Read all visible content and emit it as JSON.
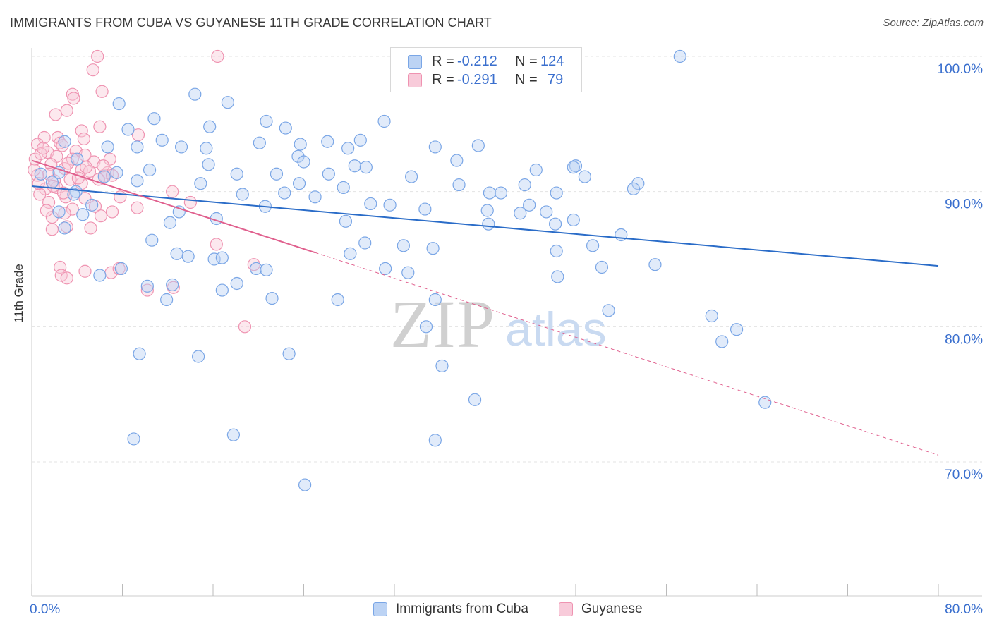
{
  "header": {
    "title": "IMMIGRANTS FROM CUBA VS GUYANESE 11TH GRADE CORRELATION CHART",
    "source": "Source: ZipAtlas.com"
  },
  "watermark": {
    "zip": "ZIP",
    "atlas": "atlas"
  },
  "colors": {
    "blue": "#7aa6e6",
    "blue_fill": "#bcd3f4",
    "blue_line": "#2a6cc8",
    "pink": "#ef93b1",
    "pink_fill": "#f8cbda",
    "pink_line": "#e0608e",
    "tick_label": "#3a6fce"
  },
  "legend_stats": [
    {
      "r_label": "R =",
      "r_value": "-0.212",
      "n_label": "N =",
      "n_value": "124"
    },
    {
      "r_label": "R =",
      "r_value": "-0.291",
      "n_label": "N =",
      "n_value": "79"
    }
  ],
  "chart_data": {
    "type": "scatter",
    "title": "IMMIGRANTS FROM CUBA VS GUYANESE 11TH GRADE CORRELATION CHART",
    "xlabel": "",
    "ylabel": "11th Grade",
    "xlim": [
      0,
      80
    ],
    "ylim": [
      60,
      102
    ],
    "x_tick_labels": [
      "0.0%",
      "80.0%"
    ],
    "y_ticks": [
      70,
      80,
      90,
      100
    ],
    "y_tick_labels": [
      "70.0%",
      "80.0%",
      "90.0%",
      "100.0%"
    ],
    "grid": true,
    "legend_position": "bottom",
    "series": [
      {
        "name": "Immigrants from Cuba",
        "color": "blue",
        "trend": {
          "x": [
            0,
            80
          ],
          "y": [
            90.4,
            84.5
          ],
          "style": "solid"
        },
        "points": [
          [
            57.2,
            100
          ],
          [
            14.4,
            97.2
          ],
          [
            7.7,
            96.5
          ],
          [
            17.3,
            96.6
          ],
          [
            10.8,
            95.4
          ],
          [
            20.7,
            95.2
          ],
          [
            31.1,
            95.2
          ],
          [
            15.7,
            94.8
          ],
          [
            22.4,
            94.7
          ],
          [
            8.5,
            94.6
          ],
          [
            11.5,
            93.8
          ],
          [
            20.1,
            93.6
          ],
          [
            23.7,
            93.5
          ],
          [
            26.1,
            93.7
          ],
          [
            2.9,
            93.7
          ],
          [
            13.2,
            93.3
          ],
          [
            15.4,
            93.2
          ],
          [
            9.3,
            93.3
          ],
          [
            6.7,
            93.3
          ],
          [
            29.0,
            93.8
          ],
          [
            27.9,
            93.2
          ],
          [
            35.6,
            93.3
          ],
          [
            39.4,
            93.4
          ],
          [
            37.5,
            92.3
          ],
          [
            23.5,
            92.6
          ],
          [
            24.0,
            92.2
          ],
          [
            4.0,
            92.4
          ],
          [
            15.6,
            92.0
          ],
          [
            48.0,
            91.9
          ],
          [
            47.8,
            91.8
          ],
          [
            28.5,
            91.9
          ],
          [
            29.5,
            91.8
          ],
          [
            44.5,
            91.6
          ],
          [
            10.4,
            91.6
          ],
          [
            2.4,
            91.4
          ],
          [
            0.8,
            91.3
          ],
          [
            7.5,
            91.4
          ],
          [
            18.1,
            91.3
          ],
          [
            26.2,
            91.3
          ],
          [
            21.6,
            91.3
          ],
          [
            6.4,
            91.1
          ],
          [
            9.3,
            90.8
          ],
          [
            33.5,
            91.1
          ],
          [
            14.9,
            90.6
          ],
          [
            48.8,
            91.1
          ],
          [
            53.5,
            90.6
          ],
          [
            37.7,
            90.5
          ],
          [
            23.6,
            90.6
          ],
          [
            27.5,
            90.3
          ],
          [
            43.5,
            90.5
          ],
          [
            40.4,
            89.9
          ],
          [
            46.3,
            89.9
          ],
          [
            41.4,
            89.9
          ],
          [
            18.6,
            89.8
          ],
          [
            22.3,
            89.9
          ],
          [
            25.0,
            89.6
          ],
          [
            1.8,
            90.7
          ],
          [
            3.9,
            90.0
          ],
          [
            3.7,
            89.8
          ],
          [
            5.3,
            89.0
          ],
          [
            20.6,
            88.9
          ],
          [
            29.9,
            89.1
          ],
          [
            40.2,
            88.6
          ],
          [
            43.9,
            89.0
          ],
          [
            45.4,
            88.5
          ],
          [
            34.7,
            88.7
          ],
          [
            31.6,
            89.0
          ],
          [
            13.0,
            88.5
          ],
          [
            43.1,
            88.4
          ],
          [
            16.3,
            88.0
          ],
          [
            27.7,
            87.8
          ],
          [
            12.2,
            87.7
          ],
          [
            2.4,
            88.5
          ],
          [
            4.5,
            88.3
          ],
          [
            2.9,
            87.3
          ],
          [
            46.2,
            87.6
          ],
          [
            40.3,
            87.6
          ],
          [
            10.6,
            86.4
          ],
          [
            29.4,
            86.2
          ],
          [
            32.8,
            86.0
          ],
          [
            28.1,
            85.4
          ],
          [
            12.8,
            85.4
          ],
          [
            13.8,
            85.2
          ],
          [
            16.1,
            85.0
          ],
          [
            16.8,
            85.1
          ],
          [
            35.4,
            85.8
          ],
          [
            33.2,
            84.0
          ],
          [
            46.3,
            85.6
          ],
          [
            19.8,
            84.3
          ],
          [
            20.7,
            84.2
          ],
          [
            18.1,
            83.2
          ],
          [
            31.2,
            84.3
          ],
          [
            10.2,
            83.0
          ],
          [
            12.4,
            83.1
          ],
          [
            16.8,
            82.7
          ],
          [
            11.9,
            82.0
          ],
          [
            21.2,
            82.1
          ],
          [
            27.0,
            82.0
          ],
          [
            35.6,
            82.0
          ],
          [
            6.0,
            83.8
          ],
          [
            7.9,
            84.3
          ],
          [
            60.0,
            80.8
          ],
          [
            62.2,
            79.8
          ],
          [
            34.8,
            80.0
          ],
          [
            36.2,
            77.1
          ],
          [
            60.9,
            78.9
          ],
          [
            64.7,
            74.4
          ],
          [
            9.5,
            78.0
          ],
          [
            14.7,
            77.8
          ],
          [
            22.7,
            78.0
          ],
          [
            39.1,
            74.6
          ],
          [
            9.0,
            71.7
          ],
          [
            17.8,
            72.0
          ],
          [
            35.6,
            71.6
          ],
          [
            24.1,
            68.3
          ],
          [
            53.1,
            90.2
          ],
          [
            47.8,
            87.9
          ],
          [
            52.0,
            86.8
          ],
          [
            49.5,
            86.0
          ],
          [
            55.0,
            84.6
          ],
          [
            50.3,
            84.4
          ],
          [
            46.4,
            83.7
          ],
          [
            50.9,
            81.2
          ]
        ]
      },
      {
        "name": "Guyanese",
        "color": "pink",
        "trend": {
          "x": [
            0,
            80
          ],
          "y": [
            92.3,
            70.5
          ],
          "style": "solid-then-dashed",
          "solid_until_x": 25
        },
        "points": [
          [
            5.8,
            100
          ],
          [
            16.4,
            100
          ],
          [
            5.4,
            99.0
          ],
          [
            6.2,
            97.4
          ],
          [
            3.6,
            97.2
          ],
          [
            3.7,
            96.9
          ],
          [
            3.1,
            96.0
          ],
          [
            2.1,
            95.7
          ],
          [
            4.4,
            94.5
          ],
          [
            6.0,
            94.8
          ],
          [
            2.3,
            94.0
          ],
          [
            1.1,
            94.0
          ],
          [
            2.5,
            93.6
          ],
          [
            4.6,
            93.9
          ],
          [
            9.4,
            94.2
          ],
          [
            0.5,
            93.5
          ],
          [
            3.9,
            93.0
          ],
          [
            1.4,
            92.9
          ],
          [
            2.2,
            92.6
          ],
          [
            4.7,
            92.7
          ],
          [
            5.5,
            92.2
          ],
          [
            6.9,
            92.4
          ],
          [
            0.3,
            92.4
          ],
          [
            1.7,
            92.0
          ],
          [
            2.9,
            91.7
          ],
          [
            4.4,
            91.6
          ],
          [
            5.1,
            91.5
          ],
          [
            6.4,
            91.2
          ],
          [
            6.7,
            91.4
          ],
          [
            1.5,
            91.3
          ],
          [
            0.5,
            91.2
          ],
          [
            3.4,
            90.9
          ],
          [
            2.0,
            90.8
          ],
          [
            4.4,
            90.6
          ],
          [
            2.2,
            90.3
          ],
          [
            1.2,
            90.2
          ],
          [
            0.7,
            89.8
          ],
          [
            12.4,
            90.0
          ],
          [
            3.0,
            89.6
          ],
          [
            4.7,
            89.5
          ],
          [
            1.5,
            89.2
          ],
          [
            14.0,
            89.2
          ],
          [
            5.6,
            88.9
          ],
          [
            3.6,
            88.7
          ],
          [
            2.9,
            88.4
          ],
          [
            7.1,
            88.5
          ],
          [
            1.8,
            88.1
          ],
          [
            9.3,
            88.8
          ],
          [
            5.2,
            87.3
          ],
          [
            1.8,
            87.2
          ],
          [
            3.1,
            87.4
          ],
          [
            16.3,
            86.1
          ],
          [
            2.5,
            84.4
          ],
          [
            4.7,
            84.1
          ],
          [
            7.0,
            84.0
          ],
          [
            7.7,
            84.3
          ],
          [
            2.6,
            83.8
          ],
          [
            3.1,
            83.6
          ],
          [
            12.5,
            82.9
          ],
          [
            10.2,
            82.7
          ],
          [
            18.8,
            80.0
          ],
          [
            19.6,
            84.6
          ],
          [
            0.8,
            92.8
          ],
          [
            1.0,
            93.2
          ],
          [
            2.7,
            93.4
          ],
          [
            3.6,
            92.4
          ],
          [
            4.8,
            91.8
          ],
          [
            6.3,
            91.9
          ],
          [
            7.1,
            91.2
          ],
          [
            0.2,
            91.6
          ],
          [
            0.6,
            90.6
          ],
          [
            1.9,
            90.4
          ],
          [
            5.9,
            90.9
          ],
          [
            2.8,
            89.9
          ],
          [
            7.8,
            89.6
          ],
          [
            4.1,
            91.0
          ],
          [
            3.2,
            92.1
          ],
          [
            6.1,
            88.2
          ],
          [
            1.3,
            88.6
          ]
        ]
      }
    ]
  },
  "bottom_legend": [
    {
      "label": "Immigrants from Cuba"
    },
    {
      "label": "Guyanese"
    }
  ]
}
